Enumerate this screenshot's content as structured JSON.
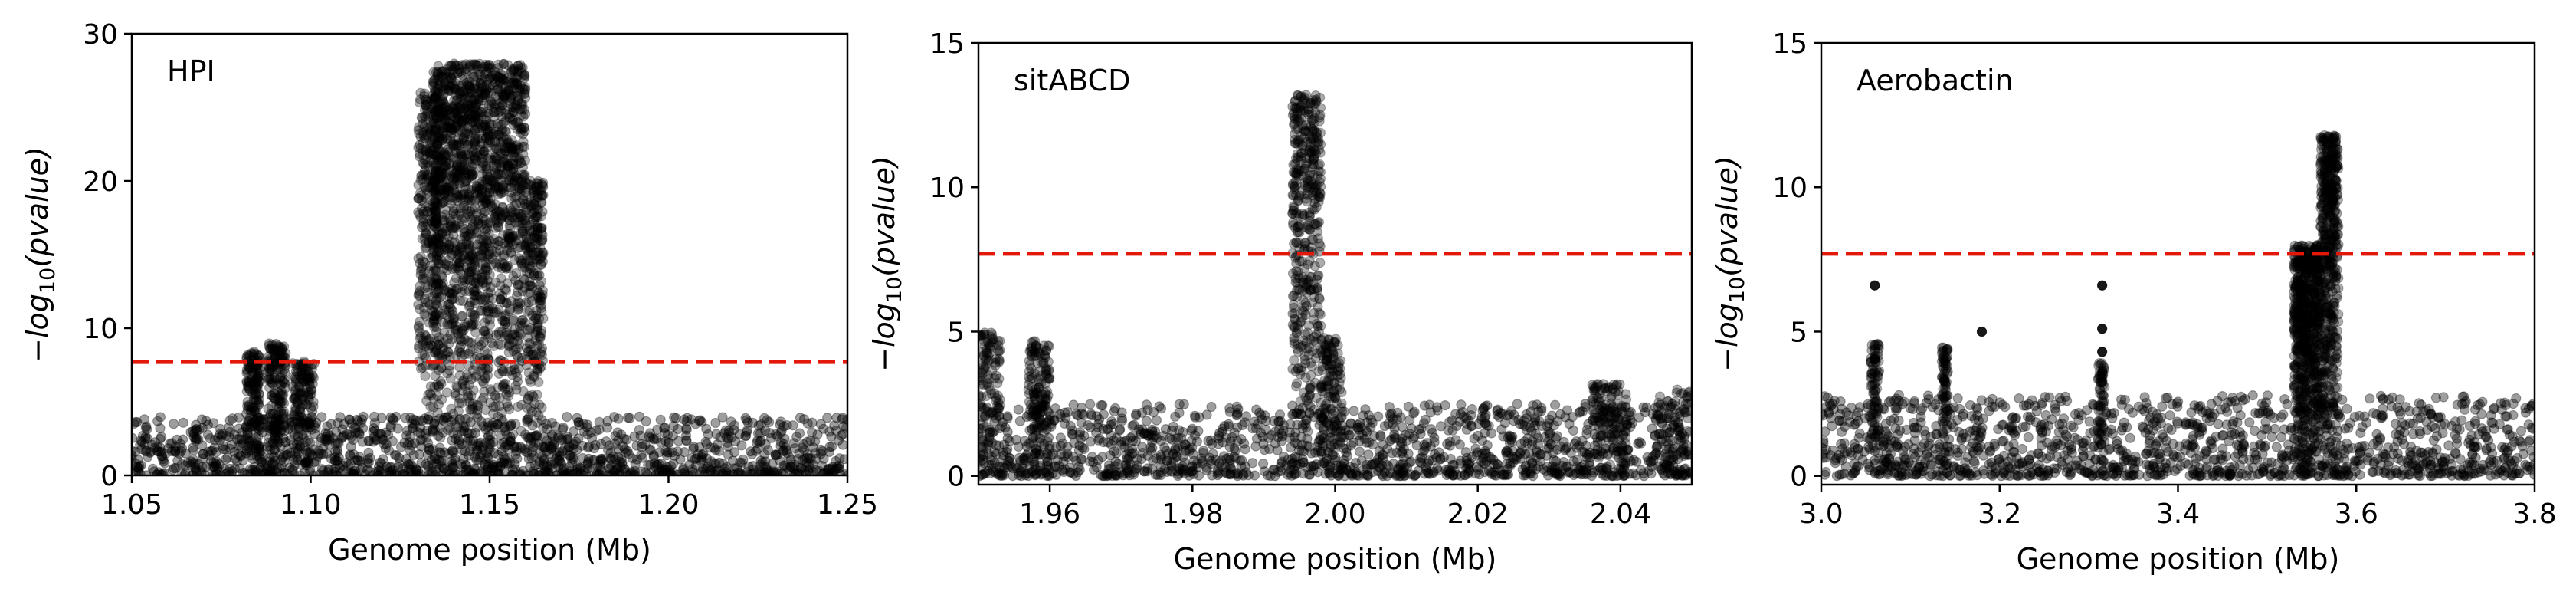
{
  "chart_data": [
    {
      "type": "scatter",
      "title": "HPI",
      "xlabel": "Genome position (Mb)",
      "ylabel_main": "−log",
      "ylabel_sub": "10",
      "ylabel_rest": "(pvalue)",
      "xlim": [
        1.05,
        1.25
      ],
      "ylim": [
        0,
        30
      ],
      "xticks": [
        1.05,
        1.1,
        1.15,
        1.2,
        1.25
      ],
      "xtick_labels": [
        "1.05",
        "1.10",
        "1.15",
        "1.20",
        "1.25"
      ],
      "yticks": [
        0,
        10,
        20,
        30
      ],
      "ytick_labels": [
        "0",
        "10",
        "20",
        "30"
      ],
      "threshold": 7.7,
      "threshold_color": "#e3170a",
      "point_color": "#000000",
      "baseline_max": 4,
      "clusters": [
        {
          "x0": 1.082,
          "x1": 1.086,
          "n": 160,
          "ymax": 8.5
        },
        {
          "x0": 1.088,
          "x1": 1.093,
          "n": 180,
          "ymax": 9.0
        },
        {
          "x0": 1.095,
          "x1": 1.101,
          "n": 140,
          "ymax": 7.8
        },
        {
          "x0": 1.13,
          "x1": 1.136,
          "n": 300,
          "ymax": 26.0
        },
        {
          "x0": 1.134,
          "x1": 1.146,
          "n": 900,
          "ymax": 28.0
        },
        {
          "x0": 1.146,
          "x1": 1.16,
          "n": 900,
          "ymax": 28.0
        },
        {
          "x0": 1.16,
          "x1": 1.165,
          "n": 250,
          "ymax": 20.0
        }
      ]
    },
    {
      "type": "scatter",
      "title": "sitABCD",
      "xlabel": "Genome position (Mb)",
      "ylabel_main": "−log",
      "ylabel_sub": "10",
      "ylabel_rest": "(pvalue)",
      "xlim": [
        1.95,
        2.05
      ],
      "ylim": [
        -0.3,
        15
      ],
      "xticks": [
        1.96,
        1.98,
        2.0,
        2.02,
        2.04
      ],
      "xtick_labels": [
        "1.96",
        "1.98",
        "2.00",
        "2.02",
        "2.04"
      ],
      "yticks": [
        0,
        5,
        10,
        15
      ],
      "ytick_labels": [
        "0",
        "5",
        "10",
        "15"
      ],
      "threshold": 7.7,
      "threshold_color": "#e3170a",
      "point_color": "#000000",
      "baseline_max": 2.5,
      "clusters": [
        {
          "x0": 1.95,
          "x1": 1.953,
          "n": 120,
          "ymax": 5.0
        },
        {
          "x0": 1.957,
          "x1": 1.96,
          "n": 150,
          "ymax": 4.7
        },
        {
          "x0": 1.994,
          "x1": 1.998,
          "n": 420,
          "ymax": 13.2
        },
        {
          "x0": 1.998,
          "x1": 2.001,
          "n": 140,
          "ymax": 4.8
        },
        {
          "x0": 2.036,
          "x1": 2.041,
          "n": 120,
          "ymax": 3.2
        },
        {
          "x0": 2.045,
          "x1": 2.05,
          "n": 80,
          "ymax": 3.0
        }
      ]
    },
    {
      "type": "scatter",
      "title": "Aerobactin",
      "xlabel": "Genome position (Mb)",
      "ylabel_main": "−log",
      "ylabel_sub": "10",
      "ylabel_rest": "(pvalue)",
      "xlim": [
        3.0,
        3.8
      ],
      "ylim": [
        -0.3,
        15
      ],
      "xticks": [
        3.0,
        3.2,
        3.4,
        3.6,
        3.8
      ],
      "xtick_labels": [
        "3.0",
        "3.2",
        "3.4",
        "3.6",
        "3.8"
      ],
      "yticks": [
        0,
        5,
        10,
        15
      ],
      "ytick_labels": [
        "0",
        "5",
        "10",
        "15"
      ],
      "threshold": 7.7,
      "threshold_color": "#e3170a",
      "point_color": "#000000",
      "baseline_max": 2.8,
      "clusters": [
        {
          "x0": 3.055,
          "x1": 3.065,
          "n": 90,
          "ymax": 4.6
        },
        {
          "x0": 3.135,
          "x1": 3.142,
          "n": 80,
          "ymax": 4.5
        },
        {
          "x0": 3.31,
          "x1": 3.318,
          "n": 60,
          "ymax": 4.0
        },
        {
          "x0": 3.53,
          "x1": 3.56,
          "n": 700,
          "ymax": 8.0
        },
        {
          "x0": 3.56,
          "x1": 3.58,
          "n": 500,
          "ymax": 11.8
        }
      ],
      "outliers": [
        [
          3.06,
          6.6
        ],
        [
          3.315,
          6.6
        ],
        [
          3.315,
          5.1
        ],
        [
          3.315,
          4.3
        ],
        [
          3.18,
          5.0
        ]
      ]
    }
  ]
}
